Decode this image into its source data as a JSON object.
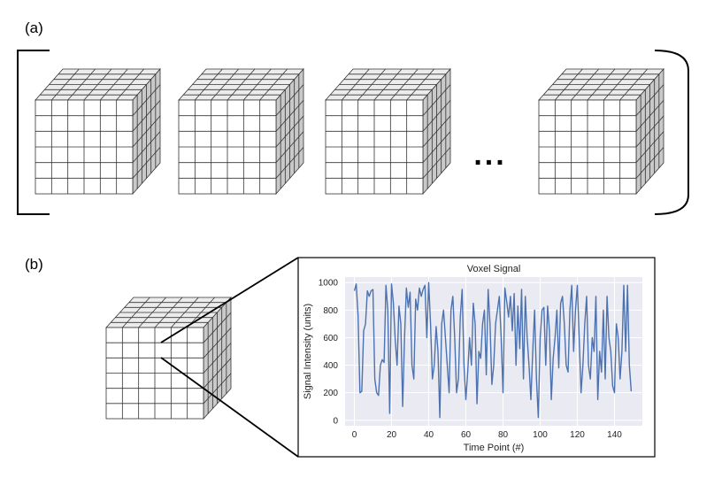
{
  "panel_labels": {
    "a": "(a)",
    "b": "(b)"
  },
  "ellipsis": "...",
  "chart_data": {
    "type": "line",
    "title": "Voxel Signal",
    "xlabel": "Time Point (#)",
    "ylabel": "Signal Intensity (units)",
    "xlim": [
      -5,
      155
    ],
    "ylim": [
      -40,
      1040
    ],
    "xticks": [
      0,
      20,
      40,
      60,
      80,
      100,
      120,
      140
    ],
    "yticks": [
      0,
      200,
      400,
      600,
      800,
      1000
    ],
    "grid": true,
    "series": [
      {
        "color": "#4c72b0",
        "x": [
          0,
          1,
          2,
          3,
          4,
          5,
          6,
          7,
          8,
          9,
          10,
          11,
          12,
          13,
          14,
          15,
          16,
          17,
          18,
          19,
          20,
          21,
          22,
          23,
          24,
          25,
          26,
          27,
          28,
          29,
          30,
          31,
          32,
          33,
          34,
          35,
          36,
          37,
          38,
          39,
          40,
          41,
          42,
          43,
          44,
          45,
          46,
          47,
          48,
          49,
          50,
          51,
          52,
          53,
          54,
          55,
          56,
          57,
          58,
          59,
          60,
          61,
          62,
          63,
          64,
          65,
          66,
          67,
          68,
          69,
          70,
          71,
          72,
          73,
          74,
          75,
          76,
          77,
          78,
          79,
          80,
          81,
          82,
          83,
          84,
          85,
          86,
          87,
          88,
          89,
          90,
          91,
          92,
          93,
          94,
          95,
          96,
          97,
          98,
          99,
          100,
          101,
          102,
          103,
          104,
          105,
          106,
          107,
          108,
          109,
          110,
          111,
          112,
          113,
          114,
          115,
          116,
          117,
          118,
          119,
          120,
          121,
          122,
          123,
          124,
          125,
          126,
          127,
          128,
          129,
          130,
          131,
          132,
          133,
          134,
          135,
          136,
          137,
          138,
          139,
          140,
          141,
          142,
          143,
          144,
          145,
          146,
          147,
          148,
          149
        ],
        "y": [
          940,
          990,
          760,
          200,
          210,
          650,
          700,
          940,
          900,
          940,
          950,
          300,
          200,
          180,
          400,
          440,
          420,
          980,
          800,
          50,
          990,
          850,
          580,
          400,
          830,
          700,
          100,
          600,
          960,
          820,
          930,
          400,
          300,
          880,
          800,
          960,
          900,
          950,
          980,
          600,
          1000,
          700,
          300,
          400,
          680,
          500,
          20,
          700,
          800,
          600,
          400,
          200,
          800,
          900,
          600,
          200,
          300,
          750,
          950,
          400,
          150,
          350,
          600,
          400,
          850,
          700,
          120,
          500,
          450,
          700,
          800,
          330,
          950,
          700,
          260,
          400,
          700,
          800,
          900,
          600,
          200,
          960,
          860,
          750,
          900,
          650,
          920,
          400,
          830,
          520,
          950,
          300,
          900,
          600,
          400,
          150,
          500,
          800,
          300,
          20,
          600,
          800,
          820,
          400,
          830,
          650,
          150,
          450,
          600,
          800,
          380,
          850,
          900,
          700,
          400,
          350,
          800,
          980,
          500,
          800,
          980,
          600,
          200,
          400,
          700,
          900,
          400,
          300,
          600,
          500,
          900,
          150,
          500,
          350,
          800,
          300,
          900,
          600,
          500,
          250,
          200,
          700,
          600,
          300,
          500,
          980,
          500,
          980,
          400,
          210
        ]
      }
    ]
  }
}
